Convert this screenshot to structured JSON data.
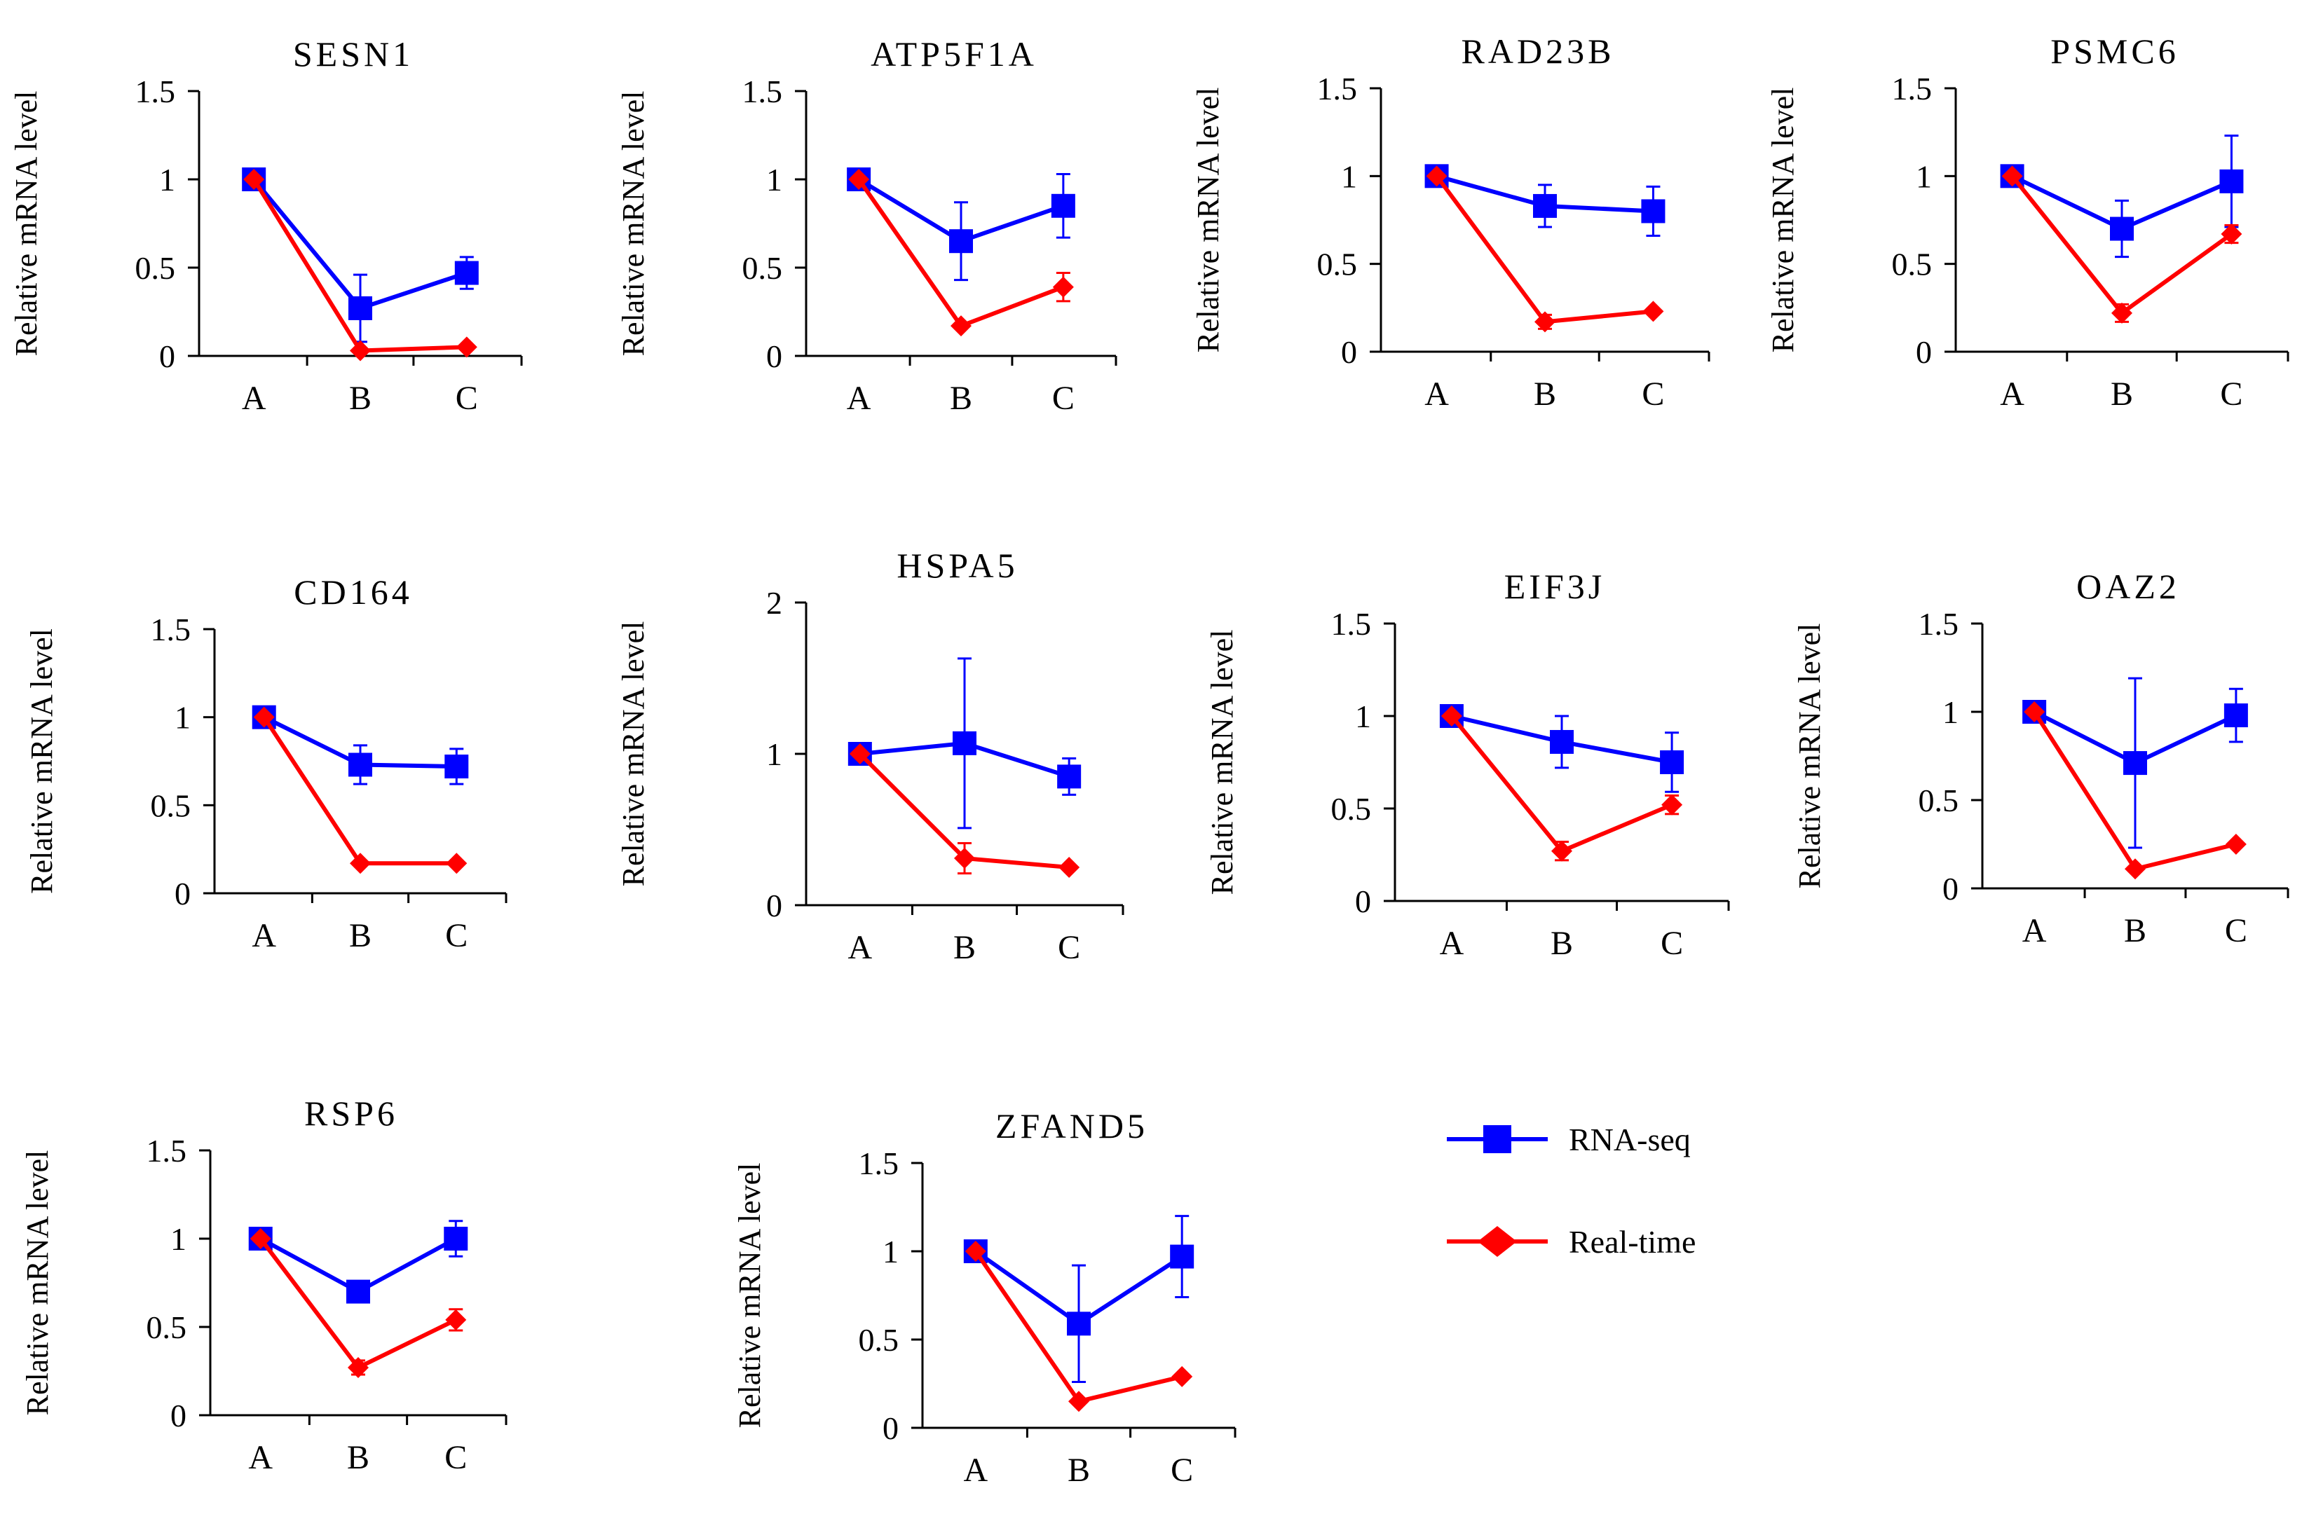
{
  "figure": {
    "ylabel": "Relative mRNA level",
    "categories": [
      "A",
      "B",
      "C"
    ],
    "legend": [
      {
        "name": "RNA-seq",
        "color": "#0000ff",
        "marker": "square"
      },
      {
        "name": "Real-time",
        "color": "#ff0000",
        "marker": "diamond"
      }
    ]
  },
  "chart_data": [
    {
      "type": "line",
      "title": "SESN1",
      "categories": [
        "A",
        "B",
        "C"
      ],
      "ylim": [
        0,
        1.5
      ],
      "yticks": [
        "0",
        "0.5",
        "1",
        "1.5"
      ],
      "ytick_values": [
        0,
        0.5,
        1,
        1.5
      ],
      "ylabel": "Relative mRNA level",
      "series": [
        {
          "name": "RNA-seq",
          "values": [
            1,
            0.27,
            0.47
          ],
          "err": [
            0,
            0.19,
            0.09
          ]
        },
        {
          "name": "Real-time",
          "values": [
            1,
            0.03,
            0.05
          ],
          "err": [
            0,
            0,
            0
          ]
        }
      ]
    },
    {
      "type": "line",
      "title": "ATP5F1A",
      "categories": [
        "A",
        "B",
        "C"
      ],
      "ylim": [
        0,
        1.5
      ],
      "yticks": [
        "0",
        "0.5",
        "1",
        "1.5"
      ],
      "ytick_values": [
        0,
        0.5,
        1,
        1.5
      ],
      "ylabel": "Relative mRNA level",
      "series": [
        {
          "name": "RNA-seq",
          "values": [
            1,
            0.65,
            0.85
          ],
          "err": [
            0,
            0.22,
            0.18
          ]
        },
        {
          "name": "Real-time",
          "values": [
            1,
            0.17,
            0.39
          ],
          "err": [
            0,
            0,
            0.08
          ]
        }
      ]
    },
    {
      "type": "line",
      "title": "RAD23B",
      "categories": [
        "A",
        "B",
        "C"
      ],
      "ylim": [
        0,
        1.5
      ],
      "yticks": [
        "0",
        "0.5",
        "1",
        "1.5"
      ],
      "ytick_values": [
        0,
        0.5,
        1,
        1.5
      ],
      "ylabel": "Relative mRNA level",
      "series": [
        {
          "name": "RNA-seq",
          "values": [
            1,
            0.83,
            0.8
          ],
          "err": [
            0,
            0.12,
            0.14
          ]
        },
        {
          "name": "Real-time",
          "values": [
            1,
            0.17,
            0.23
          ],
          "err": [
            0,
            0.04,
            0
          ]
        }
      ]
    },
    {
      "type": "line",
      "title": "PSMC6",
      "categories": [
        "A",
        "B",
        "C"
      ],
      "ylim": [
        0,
        1.5
      ],
      "yticks": [
        "0",
        "0.5",
        "1",
        "1.5"
      ],
      "ytick_values": [
        0,
        0.5,
        1,
        1.5
      ],
      "ylabel": "Relative mRNA level",
      "series": [
        {
          "name": "RNA-seq",
          "values": [
            1,
            0.7,
            0.97
          ],
          "err": [
            0,
            0.16,
            0.26
          ]
        },
        {
          "name": "Real-time",
          "values": [
            1,
            0.22,
            0.67
          ],
          "err": [
            0,
            0.05,
            0.05
          ]
        }
      ]
    },
    {
      "type": "line",
      "title": "CD164",
      "categories": [
        "A",
        "B",
        "C"
      ],
      "ylim": [
        0,
        1.5
      ],
      "yticks": [
        "0",
        "0.5",
        "1",
        "1.5"
      ],
      "ytick_values": [
        0,
        0.5,
        1,
        1.5
      ],
      "ylabel": "Relative mRNA level",
      "series": [
        {
          "name": "RNA-seq",
          "values": [
            1,
            0.73,
            0.72
          ],
          "err": [
            0,
            0.11,
            0.1
          ]
        },
        {
          "name": "Real-time",
          "values": [
            1,
            0.17,
            0.17
          ],
          "err": [
            0,
            0,
            0
          ]
        }
      ]
    },
    {
      "type": "line",
      "title": "HSPA5",
      "categories": [
        "A",
        "B",
        "C"
      ],
      "ylim": [
        0,
        2
      ],
      "yticks": [
        "0",
        "1",
        "2"
      ],
      "ytick_values": [
        0,
        1,
        2
      ],
      "ylabel": "Relative mRNA level",
      "series": [
        {
          "name": "RNA-seq",
          "values": [
            1,
            1.07,
            0.85
          ],
          "err": [
            0,
            0.56,
            0.12
          ]
        },
        {
          "name": "Real-time",
          "values": [
            1,
            0.31,
            0.25
          ],
          "err": [
            0,
            0.1,
            0
          ]
        }
      ]
    },
    {
      "type": "line",
      "title": "EIF3J",
      "categories": [
        "A",
        "B",
        "C"
      ],
      "ylim": [
        0,
        1.5
      ],
      "yticks": [
        "0",
        "0.5",
        "1",
        "1.5"
      ],
      "ytick_values": [
        0,
        0.5,
        1,
        1.5
      ],
      "ylabel": "Relative mRNA level",
      "series": [
        {
          "name": "RNA-seq",
          "values": [
            1,
            0.86,
            0.75
          ],
          "err": [
            0,
            0.14,
            0.16
          ]
        },
        {
          "name": "Real-time",
          "values": [
            1,
            0.27,
            0.52
          ],
          "err": [
            0,
            0.05,
            0.05
          ]
        }
      ]
    },
    {
      "type": "line",
      "title": "OAZ2",
      "categories": [
        "A",
        "B",
        "C"
      ],
      "ylim": [
        0,
        1.5
      ],
      "yticks": [
        "0",
        "0.5",
        "1",
        "1.5"
      ],
      "ytick_values": [
        0,
        0.5,
        1,
        1.5
      ],
      "ylabel": "Relative mRNA level",
      "series": [
        {
          "name": "RNA-seq",
          "values": [
            1,
            0.71,
            0.98
          ],
          "err": [
            0,
            0.48,
            0.15
          ]
        },
        {
          "name": "Real-time",
          "values": [
            1,
            0.11,
            0.25
          ],
          "err": [
            0,
            0,
            0
          ]
        }
      ]
    },
    {
      "type": "line",
      "title": "RSP6",
      "categories": [
        "A",
        "B",
        "C"
      ],
      "ylim": [
        0,
        1.5
      ],
      "yticks": [
        "0",
        "0.5",
        "1",
        "1.5"
      ],
      "ytick_values": [
        0,
        0.5,
        1,
        1.5
      ],
      "ylabel": "Relative mRNA level",
      "series": [
        {
          "name": "RNA-seq",
          "values": [
            1,
            0.7,
            1.0
          ],
          "err": [
            0,
            0,
            0.1
          ]
        },
        {
          "name": "Real-time",
          "values": [
            1,
            0.27,
            0.54
          ],
          "err": [
            0,
            0.04,
            0.06
          ]
        }
      ]
    },
    {
      "type": "line",
      "title": "ZFAND5",
      "categories": [
        "A",
        "B",
        "C"
      ],
      "ylim": [
        0,
        1.5
      ],
      "yticks": [
        "0",
        "0.5",
        "1",
        "1.5"
      ],
      "ytick_values": [
        0,
        0.5,
        1,
        1.5
      ],
      "ylabel": "Relative mRNA level",
      "series": [
        {
          "name": "RNA-seq",
          "values": [
            1,
            0.59,
            0.97
          ],
          "err": [
            0,
            0.33,
            0.23
          ]
        },
        {
          "name": "Real-time",
          "values": [
            1,
            0.15,
            0.29
          ],
          "err": [
            0,
            0,
            0
          ]
        }
      ]
    }
  ]
}
